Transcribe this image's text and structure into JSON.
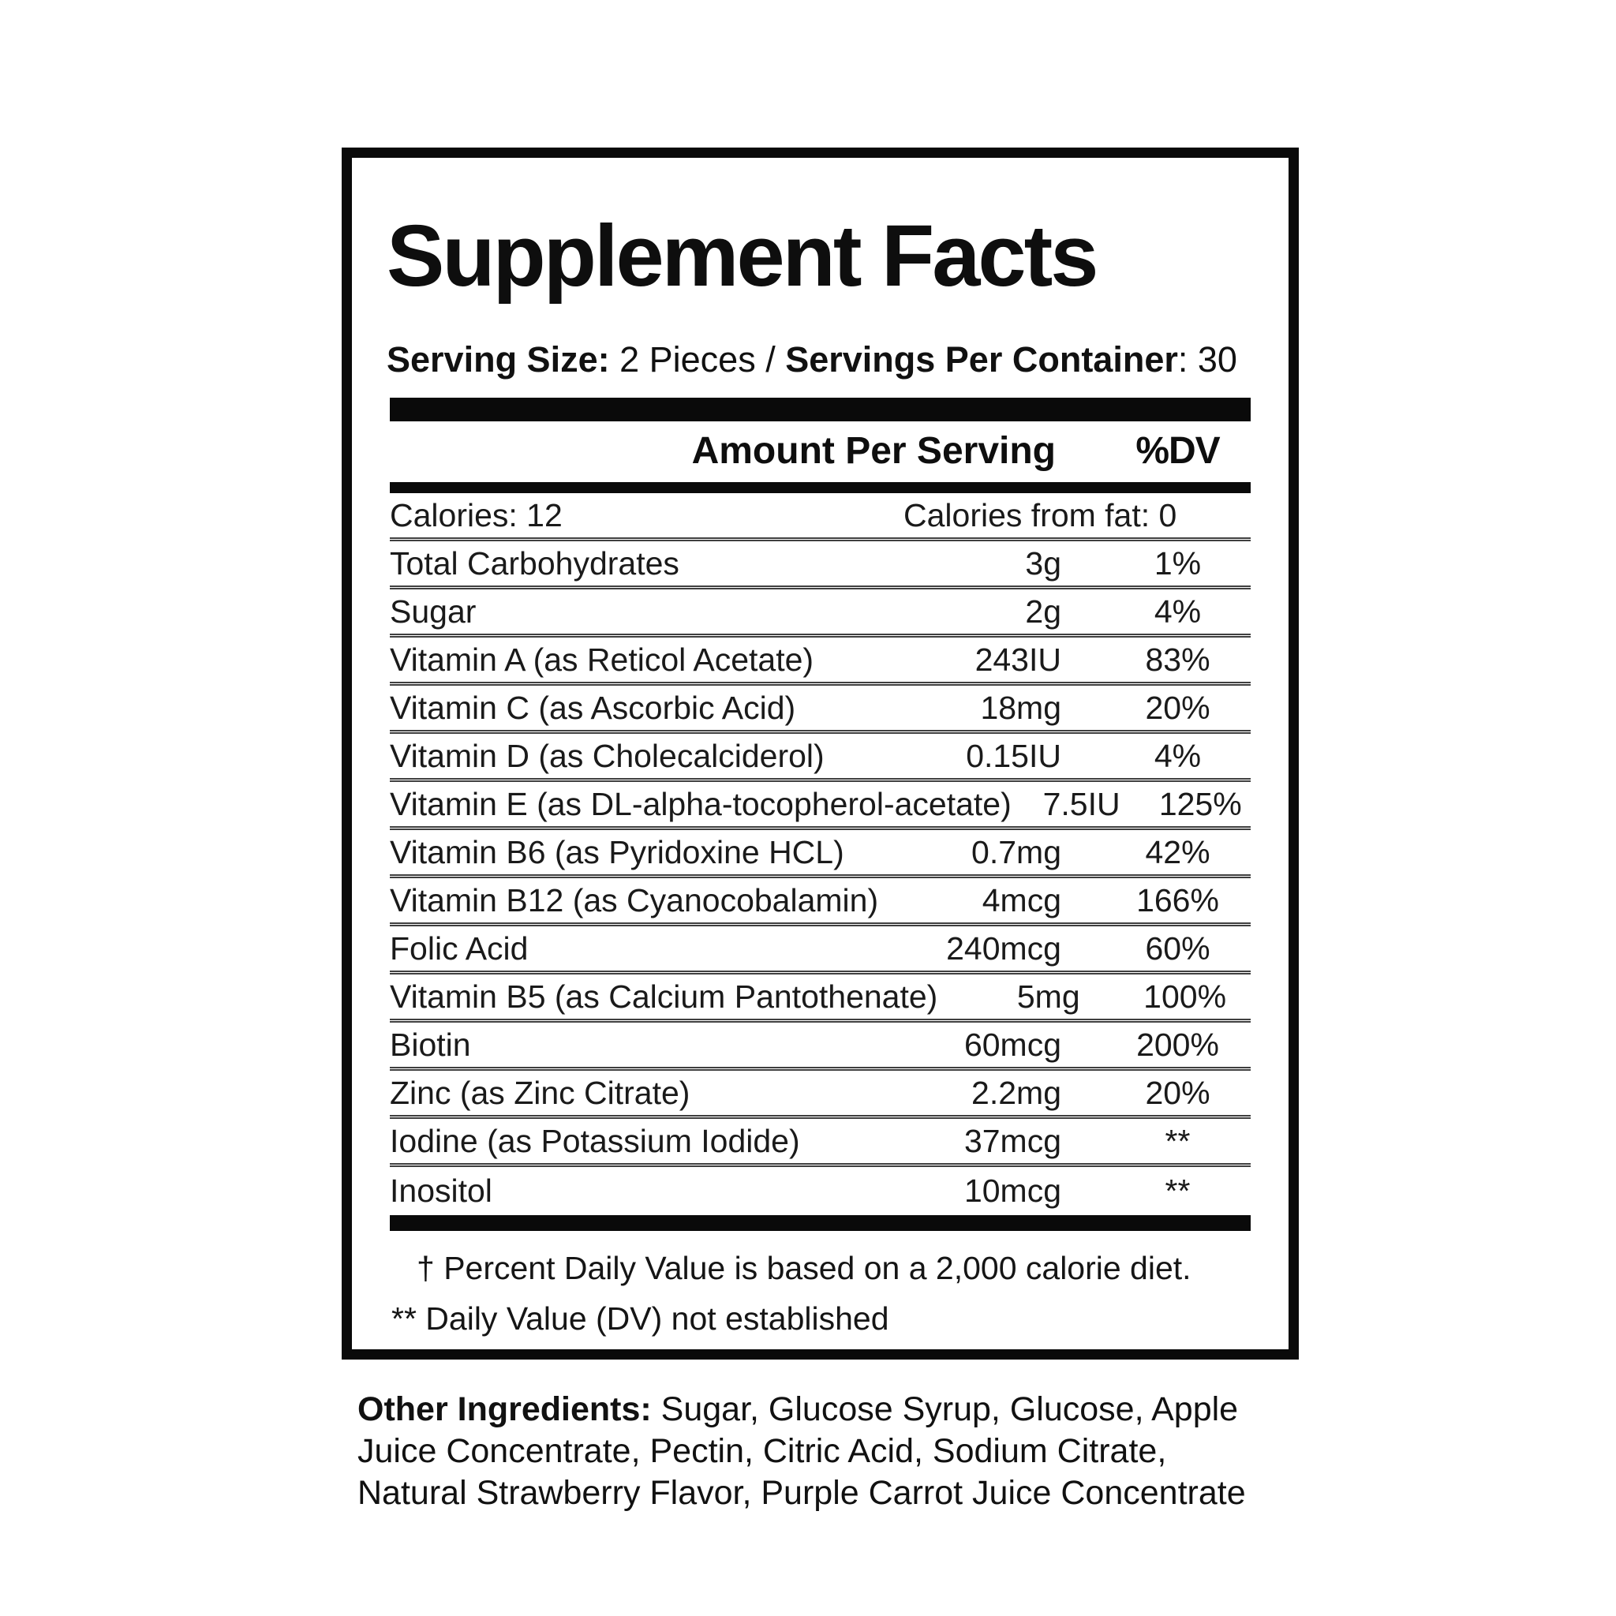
{
  "label": {
    "title": "Supplement Facts",
    "serving": {
      "size_label": "Serving Size:",
      "size_value": " 2 Pieces / ",
      "container_label": "Servings Per Container",
      "container_value": ": 30"
    },
    "header": {
      "amount": "Amount Per Serving",
      "dv": "%DV"
    },
    "calories_row": {
      "left": "Calories: 12",
      "right": "Calories from fat: 0"
    },
    "rows": [
      {
        "name": "Total Carbohydrates",
        "amount": "3g",
        "dv": "1%"
      },
      {
        "name": "Sugar",
        "amount": "2g",
        "dv": "4%"
      },
      {
        "name": "Vitamin A (as Reticol Acetate)",
        "amount": "243IU",
        "dv": "83%"
      },
      {
        "name": "Vitamin C (as Ascorbic Acid)",
        "amount": "18mg",
        "dv": "20%"
      },
      {
        "name": "Vitamin D (as Cholecalciderol)",
        "amount": "0.15IU",
        "dv": "4%"
      },
      {
        "name": "Vitamin E (as DL-alpha-tocopherol-acetate)",
        "amount": "7.5IU",
        "dv": "125%"
      },
      {
        "name": "Vitamin B6 (as Pyridoxine HCL)",
        "amount": "0.7mg",
        "dv": "42%"
      },
      {
        "name": "Vitamin B12 (as Cyanocobalamin)",
        "amount": "4mcg",
        "dv": "166%"
      },
      {
        "name": "Folic Acid",
        "amount": "240mcg",
        "dv": "60%"
      },
      {
        "name": "Vitamin B5 (as Calcium Pantothenate)",
        "amount": "5mg",
        "dv": "100%"
      },
      {
        "name": "Biotin",
        "amount": "60mcg",
        "dv": "200%"
      },
      {
        "name": "Zinc (as Zinc Citrate)",
        "amount": "2.2mg",
        "dv": "20%"
      },
      {
        "name": "Iodine (as Potassium Iodide)",
        "amount": "37mcg",
        "dv": "**"
      },
      {
        "name": "Inositol",
        "amount": "10mcg",
        "dv": "**"
      }
    ],
    "footnotes": {
      "dagger": "† Percent Daily Value is based on a 2,000 calorie diet.",
      "double_asterisk": "** Daily Value (DV) not established"
    }
  },
  "other_ingredients": {
    "label": "Other Ingredients:",
    "text": " Sugar, Glucose Syrup, Glucose, Apple Juice Concentrate, Pectin, Citric Acid, Sodium Citrate, Natural Strawberry Flavor, Purple Carrot Juice Concentrate"
  },
  "colors": {
    "text": "#141414",
    "bar": "#0a0a0a",
    "divider": "#3f3f3f",
    "background": "#ffffff"
  }
}
